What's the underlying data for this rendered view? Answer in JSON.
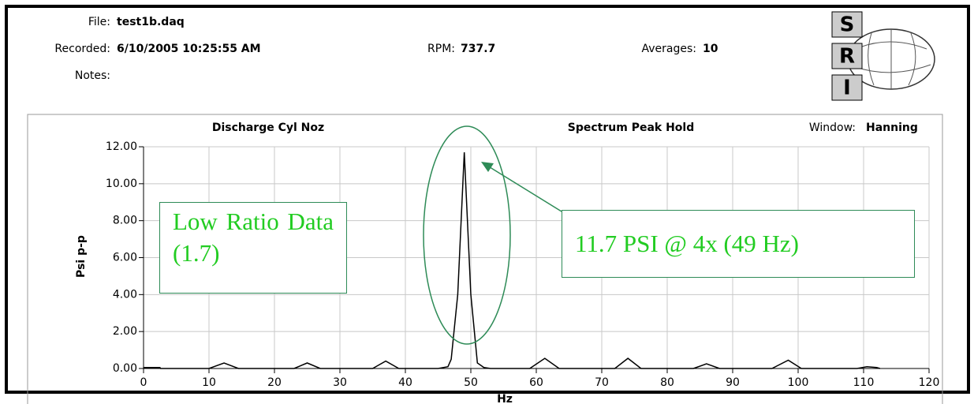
{
  "header": {
    "file_label": "File:",
    "file": "test1b.daq",
    "recorded_label": "Recorded:",
    "recorded": "6/10/2005 10:25:55 AM",
    "rpm_label": "RPM:",
    "rpm": "737.7",
    "averages_label": "Averages:",
    "averages": "10",
    "notes_label": "Notes:"
  },
  "logo": {
    "letters": [
      "S",
      "R",
      "I"
    ]
  },
  "chart_data": {
    "type": "line",
    "title": "Discharge Cyl Noz",
    "subtitle": "Spectrum Peak Hold",
    "window_label": "Window:",
    "window": "Hanning",
    "x_label": "Hz",
    "y_label": "Psi p-p",
    "color": "#000000",
    "grid": true,
    "x": [
      0,
      2.5,
      2.6,
      10,
      12.3,
      14.5,
      23,
      25,
      27,
      35,
      37,
      39,
      45,
      46.5,
      47,
      48,
      49,
      50,
      51,
      52,
      53,
      59,
      61.3,
      63.5,
      72,
      74,
      76,
      84,
      86,
      88,
      96,
      98.5,
      100.5,
      109,
      110.5,
      112,
      112.5
    ],
    "values": [
      0.05,
      0.05,
      0,
      0,
      0.3,
      0,
      0,
      0.3,
      0,
      0,
      0.4,
      0,
      0,
      0.1,
      0.5,
      4,
      11.7,
      4,
      0.3,
      0.05,
      0,
      0,
      0.55,
      0,
      0,
      0.55,
      0,
      0,
      0.25,
      0,
      0,
      0.45,
      0,
      0,
      0.1,
      0.05,
      0
    ],
    "xlim": [
      0,
      120
    ],
    "xticks": [
      0,
      10,
      20,
      30,
      40,
      50,
      60,
      70,
      80,
      90,
      100,
      110,
      120
    ],
    "ylim": [
      0,
      12
    ],
    "yticks": [
      {
        "value": 0,
        "label": "0.00"
      },
      {
        "value": 2,
        "label": "2.00"
      },
      {
        "value": 4,
        "label": "4.00"
      },
      {
        "value": 6,
        "label": "6.00"
      },
      {
        "value": 8,
        "label": "8.00"
      },
      {
        "value": 10,
        "label": "10.00"
      },
      {
        "value": 12,
        "label": "12.00"
      }
    ],
    "annotations": [
      "Low Ratio Data (1.7)",
      "11.7 PSI @ 4x (49 Hz)"
    ]
  }
}
